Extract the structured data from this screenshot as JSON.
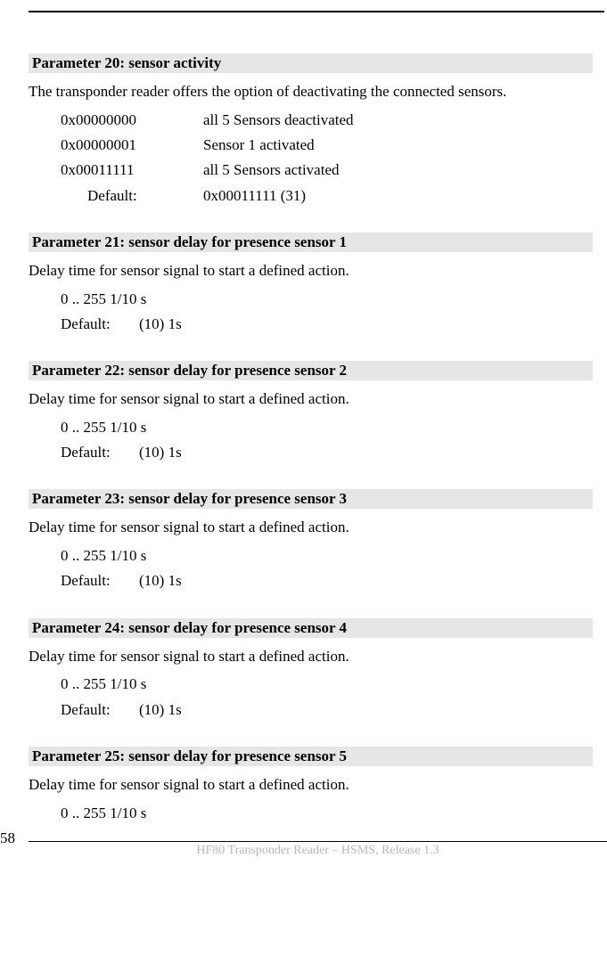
{
  "page_number": "58",
  "footer_text": "HF80 Transponder Reader – HSMS, Release 1.3",
  "sections": [
    {
      "heading": "Parameter 20: sensor activity",
      "description": "The transponder reader offers the option of deactivating the connected sensors.",
      "rows": [
        {
          "c1": "0x00000000",
          "c2": "all 5 Sensors deactivated",
          "right": false
        },
        {
          "c1": "0x00000001",
          "c2": "Sensor 1 activated",
          "right": false
        },
        {
          "c1": "0x00011111",
          "c2": "all 5 Sensors activated",
          "right": false
        },
        {
          "c1": "Default:",
          "c2": "0x00011111 (31)",
          "right": true
        }
      ]
    },
    {
      "heading": "Parameter 21: sensor delay for presence sensor  1",
      "description": "Delay time for sensor signal to start a defined action.",
      "range": "0 .. 255 1/10 s",
      "default_label": "Default:",
      "default_value": "(10) 1s"
    },
    {
      "heading": "Parameter 22: sensor delay for presence sensor 2",
      "description": "Delay time for sensor signal to start a defined action.",
      "range": "0 .. 255 1/10 s",
      "default_label": "Default:",
      "default_value": "(10) 1s"
    },
    {
      "heading": "Parameter 23: sensor delay for presence sensor  3",
      "description": "Delay time for sensor signal to start a defined action.",
      "range": "0 .. 255 1/10 s",
      "default_label": "Default:",
      "default_value": "(10) 1s"
    },
    {
      "heading": "Parameter 24: sensor delay for presence sensor  4",
      "description": "Delay time for sensor signal to start a defined action.",
      "range": "0 .. 255 1/10 s",
      "default_label": "Default:",
      "default_value": "(10) 1s"
    },
    {
      "heading": "Parameter 25: sensor delay for presence sensor  5",
      "description": "Delay time for sensor signal to start a defined action.",
      "range": "0 .. 255 1/10 s"
    }
  ]
}
